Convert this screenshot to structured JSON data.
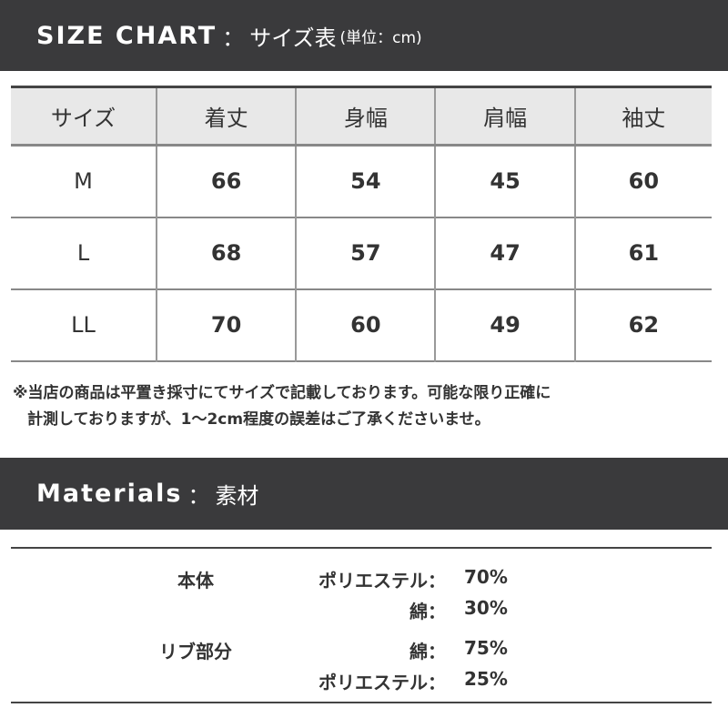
{
  "size_header": {
    "title": "SIZE CHART",
    "sep": "：",
    "subtitle": "サイズ表",
    "unit": "(単位：cm)"
  },
  "size_table": {
    "columns": [
      "サイズ",
      "着丈",
      "身幅",
      "肩幅",
      "袖丈"
    ],
    "rows": [
      [
        "M",
        "66",
        "54",
        "45",
        "60"
      ],
      [
        "L",
        "68",
        "57",
        "47",
        "61"
      ],
      [
        "LL",
        "70",
        "60",
        "49",
        "62"
      ]
    ]
  },
  "note": {
    "line1": "※当店の商品は平置き採寸にてサイズで記載しております。可能な限り正確に",
    "line2": "計測しておりますが、1〜2cm程度の誤差はご了承くださいませ。"
  },
  "materials_header": {
    "title": "Materials",
    "sep": "：",
    "subtitle": "素材"
  },
  "materials": [
    {
      "part": "本体",
      "items": [
        {
          "name": "ポリエステル：",
          "value": "70%"
        },
        {
          "name": "綿：",
          "value": "30%"
        }
      ]
    },
    {
      "part": "リブ部分",
      "items": [
        {
          "name": "綿：",
          "value": "75%"
        },
        {
          "name": "ポリエステル：",
          "value": "25%"
        }
      ]
    }
  ],
  "colors": {
    "band": "#3a3a3c",
    "header_row": "#e8e8e8"
  }
}
